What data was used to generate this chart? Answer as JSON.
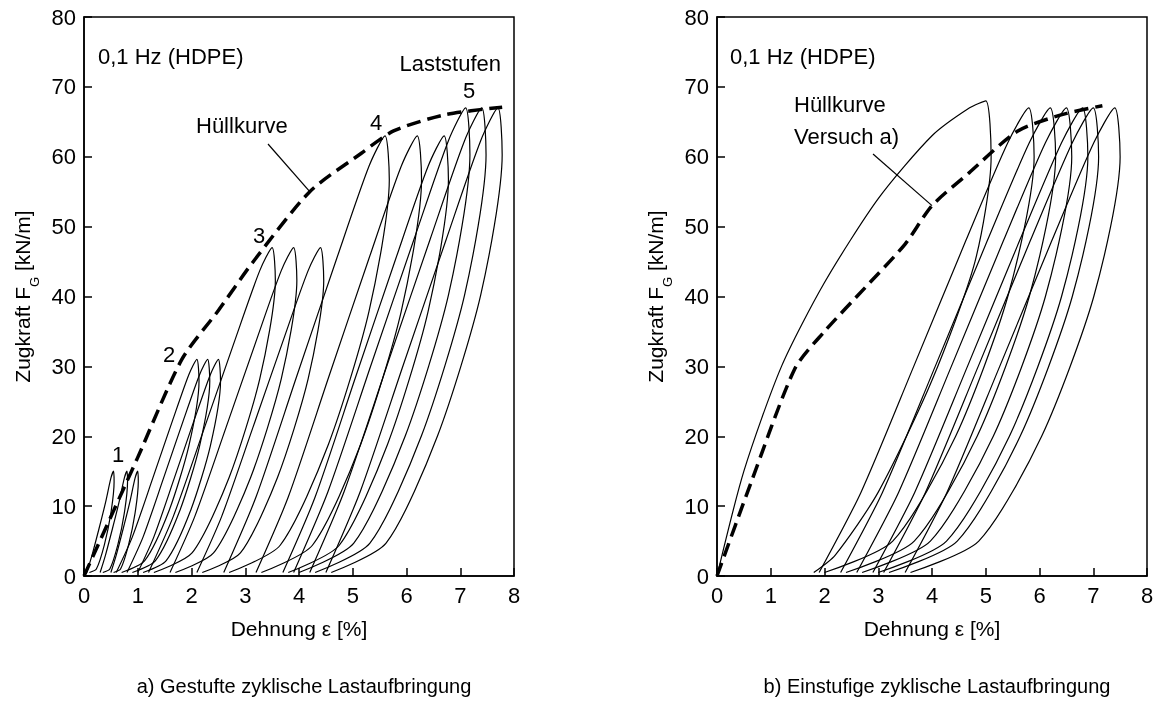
{
  "chart_data": [
    {
      "type": "line",
      "title": "a) Gestufte zyklische Lastaufbringung",
      "xlabel": "Dehnung ε [%]",
      "ylabel": "Zugkraft F$_{G}$ [kN/m]",
      "xlim": [
        0,
        8
      ],
      "ylim": [
        0,
        80
      ],
      "xticks": [
        0,
        1,
        2,
        3,
        4,
        5,
        6,
        7,
        8
      ],
      "yticks": [
        0,
        10,
        20,
        30,
        40,
        50,
        60,
        70,
        80
      ],
      "grid": false,
      "marker": "none",
      "line_style": "solid",
      "annotations": [
        "0,1 Hz (HDPE)",
        "Laststufen",
        {
          "text": "Hüllkurve",
          "x": 4.2,
          "y": 55
        },
        "1",
        "2",
        "3",
        "4",
        "5"
      ],
      "series": [
        {
          "color": "#000000",
          "x": [
            0.05,
            0.15,
            0.28,
            0.4,
            0.5,
            0.55,
            0.56,
            0.5,
            0.38,
            0.23,
            0.1
          ],
          "values": [
            0.5,
            3,
            6.8,
            10.5,
            14,
            15,
            13.5,
            9,
            4.5,
            1,
            0.5
          ]
        },
        {
          "color": "#000000",
          "x": [
            0.3,
            0.4,
            0.53,
            0.65,
            0.75,
            0.8,
            0.81,
            0.75,
            0.63,
            0.48,
            0.35
          ],
          "values": [
            0.5,
            3,
            6.8,
            10.5,
            14,
            15,
            13.5,
            9,
            4.5,
            1,
            0.5
          ]
        },
        {
          "color": "#000000",
          "x": [
            0.5,
            0.6,
            0.73,
            0.85,
            0.95,
            1.0,
            1.01,
            0.95,
            0.83,
            0.68,
            0.55
          ],
          "values": [
            0.5,
            3,
            6.8,
            10.5,
            14,
            15,
            13.5,
            9,
            4.5,
            1,
            0.5
          ]
        },
        {
          "color": "#000000",
          "x": [
            0.6,
            0.9,
            1.28,
            1.65,
            1.95,
            2.1,
            2.14,
            1.95,
            1.58,
            1.13,
            0.7
          ],
          "values": [
            0.5,
            5.6,
            14,
            22.3,
            28.8,
            31,
            27.9,
            18.6,
            9.3,
            2.2,
            0.5
          ]
        },
        {
          "color": "#000000",
          "x": [
            0.8,
            1.1,
            1.48,
            1.85,
            2.15,
            2.3,
            2.34,
            2.15,
            1.78,
            1.33,
            0.9
          ],
          "values": [
            0.5,
            5.6,
            14,
            22.3,
            28.8,
            31,
            27.9,
            18.6,
            9.3,
            2.2,
            0.5
          ]
        },
        {
          "color": "#000000",
          "x": [
            1.0,
            1.3,
            1.68,
            2.05,
            2.35,
            2.5,
            2.54,
            2.35,
            1.98,
            1.53,
            1.1
          ],
          "values": [
            0.5,
            5.6,
            14,
            22.3,
            28.8,
            31,
            27.9,
            18.6,
            9.3,
            2.2,
            0.5
          ]
        },
        {
          "color": "#000000",
          "x": [
            1.2,
            1.66,
            2.24,
            2.81,
            3.27,
            3.5,
            3.56,
            3.27,
            2.7,
            2.01,
            1.3
          ],
          "values": [
            0.5,
            8.5,
            21.2,
            33.8,
            43.7,
            47,
            42.3,
            28.2,
            14.1,
            3.3,
            0.5
          ]
        },
        {
          "color": "#000000",
          "x": [
            1.6,
            2.06,
            2.64,
            3.21,
            3.67,
            3.9,
            3.96,
            3.67,
            3.1,
            2.41,
            1.7
          ],
          "values": [
            0.5,
            8.5,
            21.2,
            33.8,
            43.7,
            47,
            42.3,
            28.2,
            14.1,
            3.3,
            0.5
          ]
        },
        {
          "color": "#000000",
          "x": [
            2.1,
            2.56,
            3.14,
            3.71,
            4.17,
            4.4,
            4.46,
            4.17,
            3.6,
            2.91,
            2.2
          ],
          "values": [
            0.5,
            8.5,
            21.2,
            33.8,
            43.7,
            47,
            42.3,
            28.2,
            14.1,
            3.3,
            0.5
          ]
        },
        {
          "color": "#000000",
          "x": [
            2.6,
            3.2,
            3.95,
            4.7,
            5.3,
            5.6,
            5.68,
            5.3,
            4.55,
            3.65,
            2.7
          ],
          "values": [
            0.5,
            11.3,
            28.4,
            45.4,
            58.6,
            63,
            56.7,
            37.8,
            18.9,
            4.4,
            0.5
          ]
        },
        {
          "color": "#000000",
          "x": [
            3.2,
            3.8,
            4.55,
            5.3,
            5.9,
            6.2,
            6.28,
            5.9,
            5.15,
            4.25,
            3.3
          ],
          "values": [
            0.5,
            11.3,
            28.4,
            45.4,
            58.6,
            63,
            56.7,
            37.8,
            18.9,
            4.4,
            0.5
          ]
        },
        {
          "color": "#000000",
          "x": [
            3.7,
            4.3,
            5.05,
            5.8,
            6.4,
            6.7,
            6.78,
            6.4,
            5.65,
            4.75,
            3.8
          ],
          "values": [
            0.5,
            11.3,
            28.4,
            45.4,
            58.6,
            63,
            56.7,
            37.8,
            18.9,
            4.4,
            0.5
          ]
        },
        {
          "color": "#000000",
          "x": [
            3.9,
            4.54,
            5.34,
            6.14,
            6.78,
            7.1,
            7.18,
            6.78,
            5.98,
            5.02,
            4.0
          ],
          "values": [
            0.5,
            12.1,
            30.2,
            48.2,
            62.3,
            67,
            60.3,
            40.2,
            20.1,
            4.7,
            0.5
          ]
        },
        {
          "color": "#000000",
          "x": [
            4.2,
            4.84,
            5.64,
            6.44,
            7.08,
            7.4,
            7.48,
            7.08,
            6.28,
            5.32,
            4.3
          ],
          "values": [
            0.5,
            12.1,
            30.2,
            48.2,
            62.3,
            67,
            60.3,
            40.2,
            20.1,
            4.7,
            0.5
          ]
        },
        {
          "color": "#000000",
          "x": [
            4.5,
            5.14,
            5.94,
            6.74,
            7.38,
            7.7,
            7.78,
            7.38,
            6.58,
            5.62,
            4.6
          ],
          "values": [
            0.5,
            12.1,
            30.2,
            48.2,
            62.3,
            67,
            60.3,
            40.2,
            20.1,
            4.7,
            0.5
          ]
        },
        {
          "color": "#000000",
          "line_style": "dashed",
          "x": [
            0,
            0.99,
            1.82,
            2.5,
            3.13,
            4.2,
            5.16,
            5.76,
            6.71,
            7.78
          ],
          "values": [
            0,
            16.8,
            31,
            38,
            44.8,
            55,
            60.5,
            63.7,
            66,
            67.1
          ]
        }
      ]
    },
    {
      "type": "line",
      "title": "b) Einstufige zyklische Lastaufbringung",
      "xlabel": "Dehnung ε [%]",
      "ylabel": "Zugkraft F$_{G}$ [kN/m]",
      "xlim": [
        0,
        8
      ],
      "ylim": [
        0,
        80
      ],
      "xticks": [
        0,
        1,
        2,
        3,
        4,
        5,
        6,
        7,
        8
      ],
      "yticks": [
        0,
        10,
        20,
        30,
        40,
        50,
        60,
        70,
        80
      ],
      "grid": false,
      "marker": "none",
      "line_style": "solid",
      "annotations": [
        "0,1 Hz (HDPE)",
        {
          "text": "Hüllkurve\nVersuch a)",
          "x": 4.0,
          "y": 53
        }
      ],
      "series": [
        {
          "color": "#000000",
          "x": [
            0,
            0.5,
            1.2,
            2.0,
            3.0,
            4.0,
            4.7,
            5.0,
            5.1,
            4.8,
            4.0,
            3.0,
            2.2,
            1.8
          ],
          "values": [
            0,
            15,
            30,
            42,
            54,
            63,
            67,
            68,
            60,
            45,
            28,
            12,
            3,
            0.5
          ]
        },
        {
          "color": "#000000",
          "x": [
            1.9,
            2.68,
            3.66,
            4.63,
            5.41,
            5.8,
            5.9,
            5.41,
            4.44,
            3.27,
            2.0
          ],
          "values": [
            0.5,
            12,
            30,
            48,
            62,
            67,
            60,
            40,
            20,
            5,
            0.5
          ]
        },
        {
          "color": "#000000",
          "x": [
            2.3,
            3.08,
            4.06,
            5.03,
            5.81,
            6.2,
            6.3,
            5.81,
            4.84,
            3.67,
            2.4
          ],
          "values": [
            0.5,
            12,
            30,
            48,
            62,
            67,
            60,
            40,
            20,
            5,
            0.5
          ]
        },
        {
          "color": "#000000",
          "x": [
            2.6,
            3.38,
            4.36,
            5.33,
            6.11,
            6.5,
            6.6,
            6.11,
            5.14,
            3.97,
            2.7
          ],
          "values": [
            0.5,
            12,
            30,
            48,
            62,
            67,
            60,
            40,
            20,
            5,
            0.5
          ]
        },
        {
          "color": "#000000",
          "x": [
            2.9,
            3.68,
            4.66,
            5.63,
            6.41,
            6.8,
            6.9,
            6.41,
            5.44,
            4.27,
            3.0
          ],
          "values": [
            0.5,
            12,
            30,
            48,
            62,
            67,
            60,
            40,
            20,
            5,
            0.5
          ]
        },
        {
          "color": "#000000",
          "x": [
            3.1,
            3.88,
            4.86,
            5.83,
            6.61,
            7.0,
            7.1,
            6.61,
            5.64,
            4.47,
            3.2
          ],
          "values": [
            0.5,
            12,
            30,
            48,
            62,
            67,
            60,
            40,
            20,
            5,
            0.5
          ]
        },
        {
          "color": "#000000",
          "x": [
            3.5,
            4.28,
            5.26,
            6.23,
            7.01,
            7.4,
            7.5,
            7.01,
            6.04,
            4.87,
            3.6
          ],
          "values": [
            0.5,
            12,
            30,
            48,
            62,
            67,
            60,
            40,
            20,
            5,
            0.5
          ]
        },
        {
          "color": "#000000",
          "line_style": "dashed",
          "x": [
            0,
            0.63,
            1.45,
            2.0,
            2.76,
            3.5,
            4.0,
            4.69,
            5.58,
            6.4,
            7.17
          ],
          "values": [
            0,
            13.3,
            29.7,
            35,
            41.3,
            47.5,
            53,
            57.7,
            63.6,
            66,
            67.3
          ]
        }
      ]
    }
  ]
}
